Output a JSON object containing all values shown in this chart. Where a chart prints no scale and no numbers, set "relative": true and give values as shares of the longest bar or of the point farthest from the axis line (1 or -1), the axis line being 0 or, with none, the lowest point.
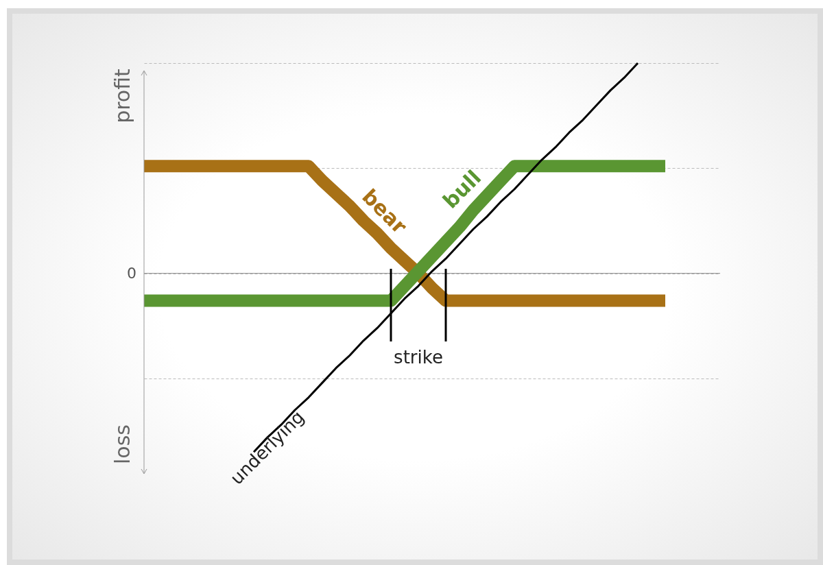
{
  "chart_data": {
    "type": "line",
    "relative": true,
    "categories": [
      null,
      null,
      null,
      null,
      null,
      null,
      null,
      null,
      null,
      null,
      null,
      null,
      null,
      null,
      null,
      null,
      null,
      null,
      null,
      null,
      null,
      null,
      null,
      null,
      null,
      null,
      null,
      null,
      null,
      null,
      null,
      null,
      null,
      null,
      null,
      null,
      null,
      null,
      null
    ],
    "series": [
      {
        "name": "bear",
        "color": "#a87116",
        "values": [
          0.51,
          0.51,
          0.51,
          0.51,
          0.51,
          0.51,
          0.51,
          0.51,
          0.51,
          0.51,
          0.51,
          0.51,
          0.51,
          0.44,
          0.38,
          0.32,
          0.25,
          0.19,
          0.12,
          0.06,
          0.0,
          -0.07,
          -0.13,
          -0.13,
          -0.13,
          -0.13,
          -0.13,
          -0.13,
          -0.13,
          -0.13,
          -0.13,
          -0.13,
          -0.13,
          -0.13,
          -0.13,
          -0.13,
          -0.13,
          -0.13,
          -0.13
        ]
      },
      {
        "name": "bull",
        "color": "#5a9632",
        "values": [
          -0.13,
          -0.13,
          -0.13,
          -0.13,
          -0.13,
          -0.13,
          -0.13,
          -0.13,
          -0.13,
          -0.13,
          -0.13,
          -0.13,
          -0.13,
          -0.13,
          -0.13,
          -0.13,
          -0.13,
          -0.13,
          -0.13,
          -0.06,
          0.01,
          0.08,
          0.15,
          0.22,
          0.3,
          0.37,
          0.44,
          0.51,
          0.51,
          0.51,
          0.51,
          0.51,
          0.51,
          0.51,
          0.51,
          0.51,
          0.51,
          0.51,
          0.51
        ]
      },
      {
        "name": "underlying",
        "color": "#000000",
        "values": [
          null,
          null,
          null,
          null,
          null,
          null,
          null,
          null,
          -0.85,
          -0.78,
          -0.72,
          -0.65,
          -0.59,
          -0.52,
          -0.45,
          -0.39,
          -0.32,
          -0.26,
          -0.19,
          -0.12,
          -0.06,
          0.01,
          0.07,
          0.14,
          0.21,
          0.27,
          0.34,
          0.4,
          0.47,
          0.54,
          0.6,
          0.67,
          0.73,
          0.8,
          0.87,
          0.93,
          1.0,
          null,
          null
        ]
      }
    ],
    "ref_lines": [
      {
        "axis": "y",
        "value": 0,
        "label": "0",
        "color": "#888888"
      }
    ],
    "annotations": [
      "profit",
      "loss",
      "strike"
    ],
    "grid": "y"
  }
}
